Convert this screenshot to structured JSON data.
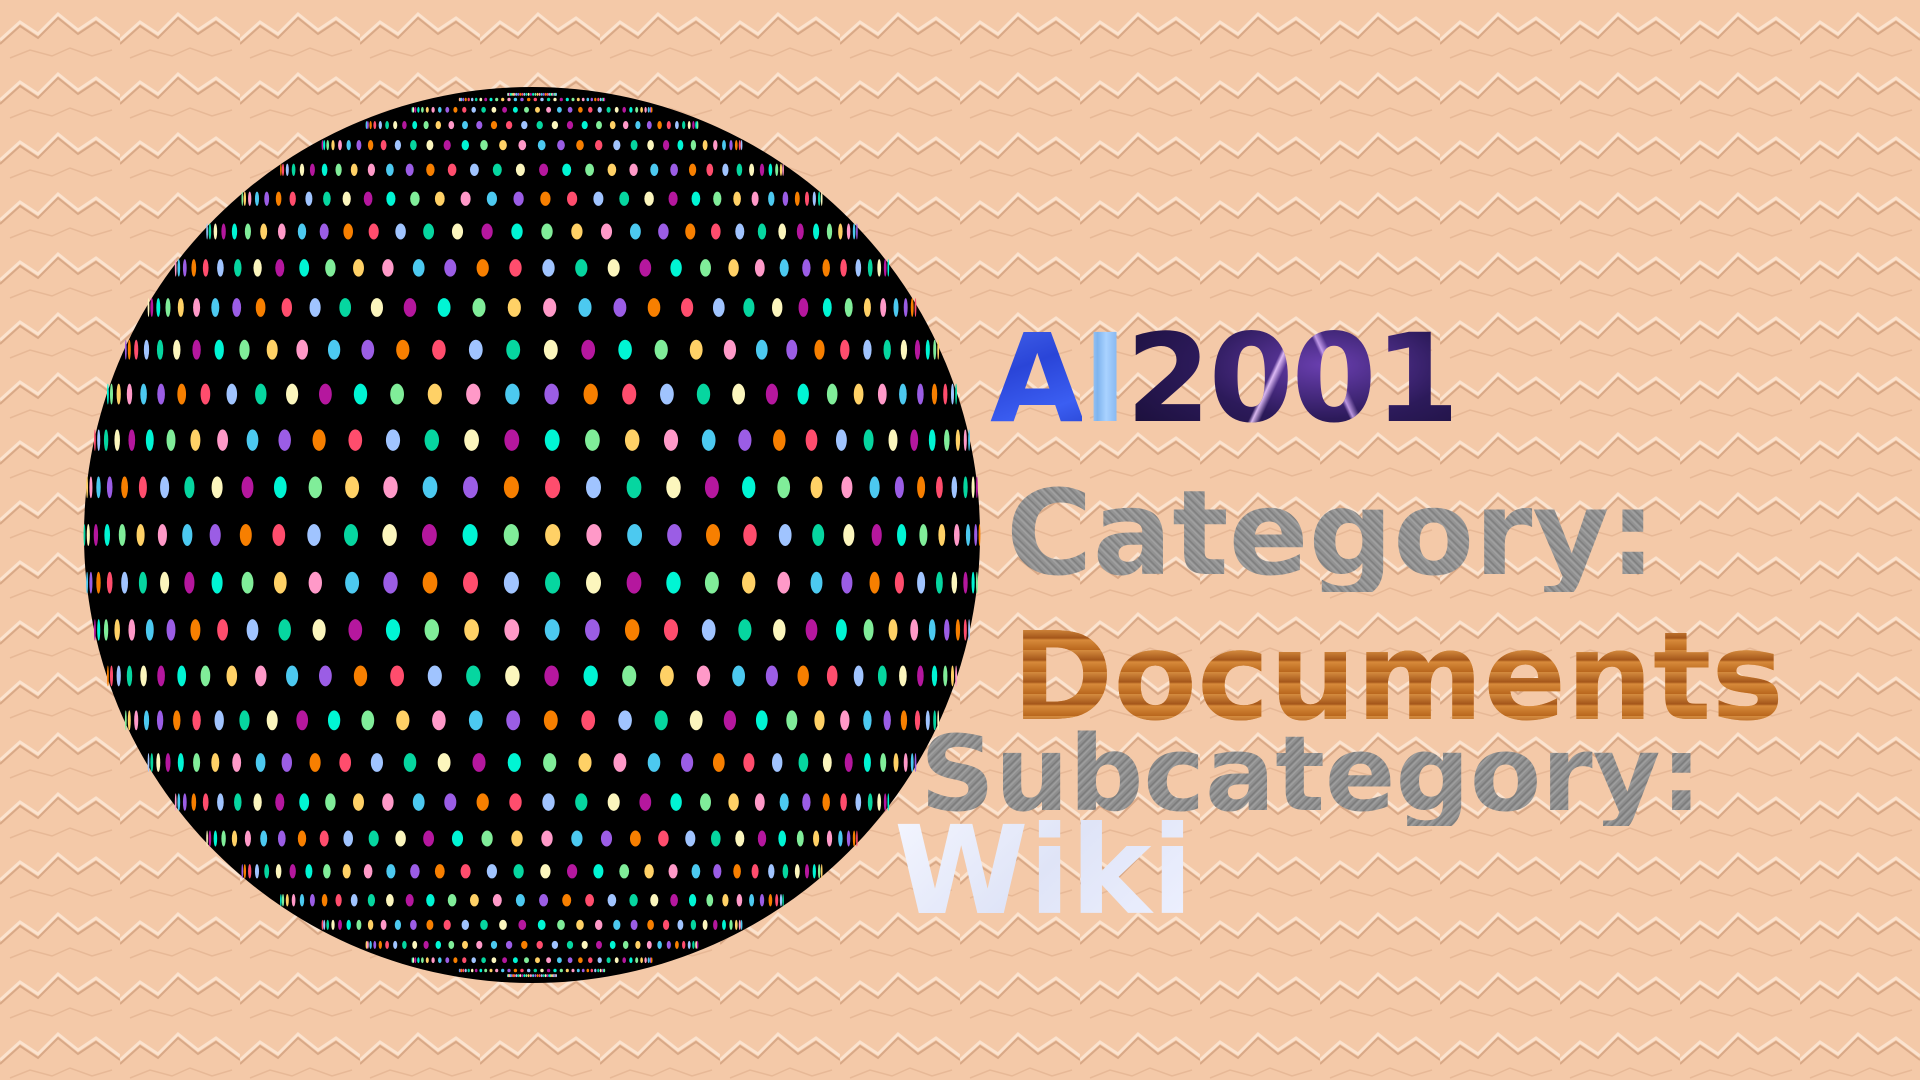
{
  "brand": {
    "letter_a": "A",
    "letter_i": "I",
    "year": "2001"
  },
  "category": {
    "label": "Category:",
    "value": "Documents"
  },
  "subcategory": {
    "label": "Subcategory:",
    "value": "Wiki"
  },
  "colors": {
    "background": "#f4c9a8",
    "sphere": "#000000",
    "brand_a": "#2a45d8",
    "brand_i": "#8fc0f2",
    "brand_year": "#2c1a5a",
    "label_gray": "#8f8f8f",
    "documents": "#c8782e",
    "wiki": "#e8ecfb"
  },
  "sphere_dot_palette": [
    "#ff4d6d",
    "#ffd166",
    "#06d6a0",
    "#4cc9f0",
    "#b5179e",
    "#f77f00",
    "#80ed99",
    "#a0c4ff",
    "#ff99c8",
    "#fcf6bd",
    "#9b5de5",
    "#00f5d4"
  ]
}
